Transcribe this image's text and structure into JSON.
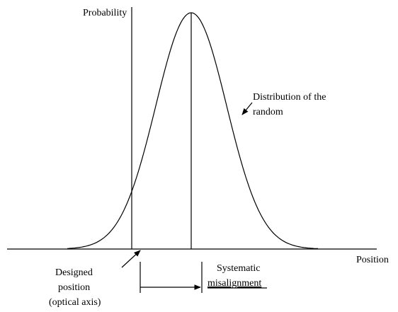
{
  "axes": {
    "y_label": "Probability",
    "x_label": "Position"
  },
  "annotations": {
    "distribution": [
      "Distribution of the",
      "random"
    ],
    "designed_position": [
      "Designed",
      "position",
      "(optical axis)"
    ],
    "misalignment": [
      "Systematic",
      "misalignment"
    ]
  }
}
